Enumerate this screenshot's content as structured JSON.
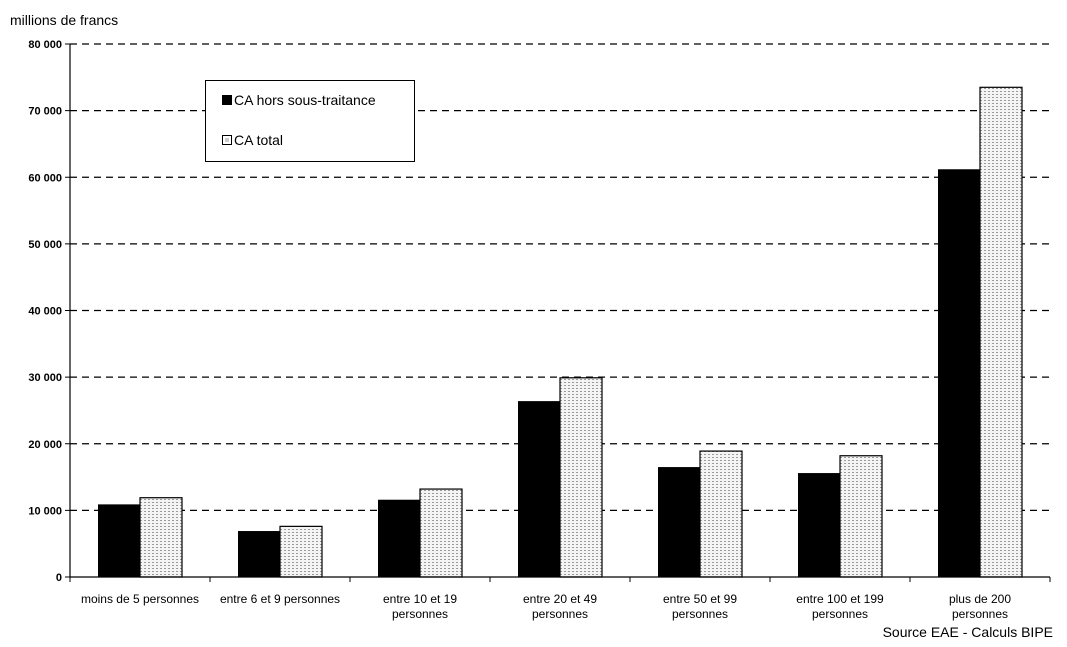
{
  "unit_label": "millions de francs",
  "source": "Source EAE - Calculs BIPE",
  "colors": {
    "series_dark": "#000000",
    "series_light": "#f4f4f4",
    "pattern": "#9a9a9a",
    "grid": "#000000"
  },
  "chart_data": {
    "type": "bar",
    "ylim": [
      0,
      80000
    ],
    "yticks": [
      0,
      10000,
      20000,
      30000,
      40000,
      50000,
      60000,
      70000,
      80000
    ],
    "ytick_labels": [
      "0",
      "10 000",
      "20 000",
      "30 000",
      "40 000",
      "50 000",
      "60 000",
      "70 000",
      "80 000"
    ],
    "grid": "horizontal-dashed",
    "legend_position": "top-left",
    "categories": [
      [
        "moins de 5 personnes"
      ],
      [
        "entre 6 et 9 personnes"
      ],
      [
        "entre 10 et 19",
        "personnes"
      ],
      [
        "entre 20 et 49",
        "personnes"
      ],
      [
        "entre 50 et 99",
        "personnes"
      ],
      [
        "entre 100 et 199",
        "personnes"
      ],
      [
        "plus de 200",
        "personnes"
      ]
    ],
    "series": [
      {
        "name": "CA hors sous-traitance",
        "values": [
          10900,
          6900,
          11600,
          26400,
          16500,
          15600,
          61200
        ]
      },
      {
        "name": "CA total",
        "values": [
          11900,
          7600,
          13200,
          29900,
          18900,
          18200,
          73500
        ]
      }
    ]
  }
}
